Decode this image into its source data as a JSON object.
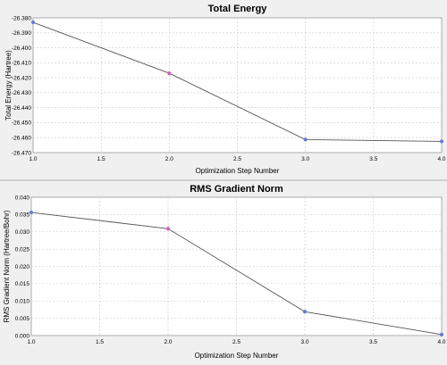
{
  "chart_data": [
    {
      "type": "line",
      "title": "Total Energy",
      "xlabel": "Optimization Step Number",
      "ylabel": "Total Energy (Hartree)",
      "x": [
        1.0,
        2.0,
        3.0,
        4.0
      ],
      "series": [
        {
          "values": [
            -26.383,
            -26.417,
            -26.4613,
            -26.4625
          ]
        }
      ],
      "xlim": [
        1.0,
        4.0
      ],
      "ylim": [
        -26.47,
        -26.38
      ],
      "xticks": [
        "1.0",
        "1.5",
        "2.0",
        "2.5",
        "3.0",
        "3.5",
        "4.0"
      ],
      "yticks": [
        "-26.380",
        "-26.390",
        "-26.400",
        "-26.410",
        "-26.420",
        "-26.430",
        "-26.440",
        "-26.450",
        "-26.460",
        "-26.470"
      ],
      "grid": true,
      "point_colors": [
        "#6a78d8",
        "#d060b8",
        "#6a78d8",
        "#6a78d8"
      ],
      "line_color": "#555555"
    },
    {
      "type": "line",
      "title": "RMS Gradient Norm",
      "xlabel": "Optimization Step Number",
      "ylabel": "RMS Gradient Norm (Hartree/Bohr)",
      "x": [
        1.0,
        2.0,
        3.0,
        4.0
      ],
      "series": [
        {
          "values": [
            0.0356,
            0.0309,
            0.0069,
            0.0003
          ]
        }
      ],
      "xlim": [
        1.0,
        4.0
      ],
      "ylim": [
        0.0,
        0.04
      ],
      "xticks": [
        "1.0",
        "1.5",
        "2.0",
        "2.5",
        "3.0",
        "3.5",
        "4.0"
      ],
      "yticks": [
        "0.040",
        "0.035",
        "0.030",
        "0.025",
        "0.020",
        "0.015",
        "0.010",
        "0.005",
        "0.000"
      ],
      "grid": true,
      "point_colors": [
        "#6a78d8",
        "#d060b8",
        "#6a78d8",
        "#6a78d8"
      ],
      "line_color": "#555555"
    }
  ]
}
